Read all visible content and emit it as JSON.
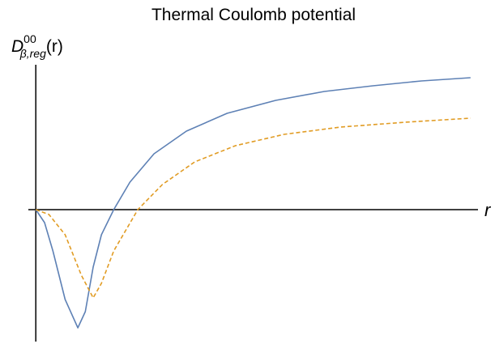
{
  "chart_data": {
    "type": "line",
    "title": "Thermal Coulomb potential",
    "y_label": {
      "base": "D",
      "superscript": "00",
      "subscript": "β,reg",
      "suffix": "(r)"
    },
    "x_label": "r",
    "xlim": [
      -0.17,
      10.1
    ],
    "ylim": [
      -1.63,
      1.79
    ],
    "series": [
      {
        "color": "#5e81b5",
        "dash": false,
        "x": [
          0,
          0.2,
          0.39,
          0.67,
          0.96,
          1.13,
          1.31,
          1.5,
          1.78,
          2.15,
          2.7,
          3.44,
          4.37,
          5.48,
          6.59,
          7.7,
          8.81,
          9.93
        ],
        "values": [
          0,
          -0.16,
          -0.51,
          -1.11,
          -1.46,
          -1.26,
          -0.71,
          -0.31,
          0,
          0.34,
          0.69,
          0.97,
          1.19,
          1.35,
          1.46,
          1.53,
          1.59,
          1.63
        ]
      },
      {
        "color": "#e19c24",
        "dash": true,
        "x": [
          0,
          0.3,
          0.67,
          1.04,
          1.31,
          1.5,
          1.78,
          2.33,
          2.89,
          3.63,
          4.56,
          5.67,
          6.96,
          8.44,
          9.93
        ],
        "values": [
          0,
          -0.06,
          -0.31,
          -0.81,
          -1.09,
          -0.91,
          -0.51,
          0,
          0.31,
          0.59,
          0.79,
          0.93,
          1.02,
          1.08,
          1.13
        ]
      }
    ]
  }
}
